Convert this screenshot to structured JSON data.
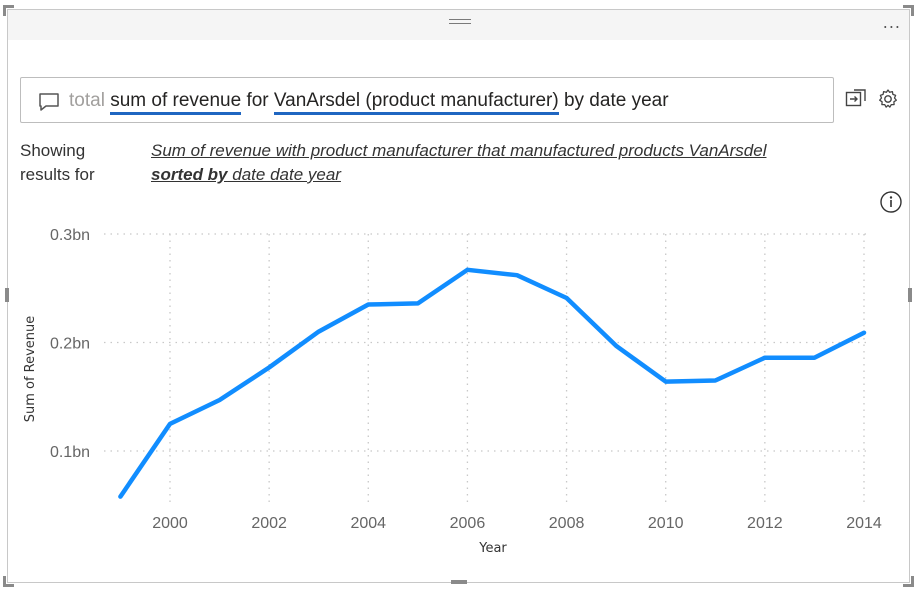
{
  "qa": {
    "prefix": "total",
    "part1": "sum of revenue",
    "part2": " for ",
    "part3": "VanArsdel (product manufacturer)",
    "part4": " by date year"
  },
  "restatement": {
    "label": "Showing results for",
    "line1": "Sum of revenue with product manufacturer that manufactured products VanArsdel",
    "sorted_by": "sorted by",
    "line2_rest": " date date year"
  },
  "more_label": "...",
  "colors": {
    "line": "#118DFF",
    "underline": "#1f66c1"
  },
  "chart_data": {
    "type": "line",
    "xlabel": "Year",
    "ylabel": "Sum of Revenue",
    "x": [
      1999,
      2000,
      2001,
      2002,
      2003,
      2004,
      2005,
      2006,
      2007,
      2008,
      2009,
      2010,
      2011,
      2012,
      2013,
      2014
    ],
    "series": [
      {
        "values": [
          0.058,
          0.125,
          0.147,
          0.177,
          0.21,
          0.235,
          0.236,
          0.267,
          0.262,
          0.241,
          0.197,
          0.164,
          0.165,
          0.186,
          0.186,
          0.209
        ]
      }
    ],
    "ylim": [
      0.05,
      0.3
    ],
    "yticks": [
      0.1,
      0.2,
      0.3
    ],
    "ytick_labels": [
      "0.1bn",
      "0.2bn",
      "0.3bn"
    ],
    "xticks": [
      2000,
      2002,
      2004,
      2006,
      2008,
      2010,
      2012,
      2014
    ],
    "xtick_labels": [
      "2000",
      "2002",
      "2004",
      "2006",
      "2008",
      "2010",
      "2012",
      "2014"
    ],
    "grid": true
  }
}
